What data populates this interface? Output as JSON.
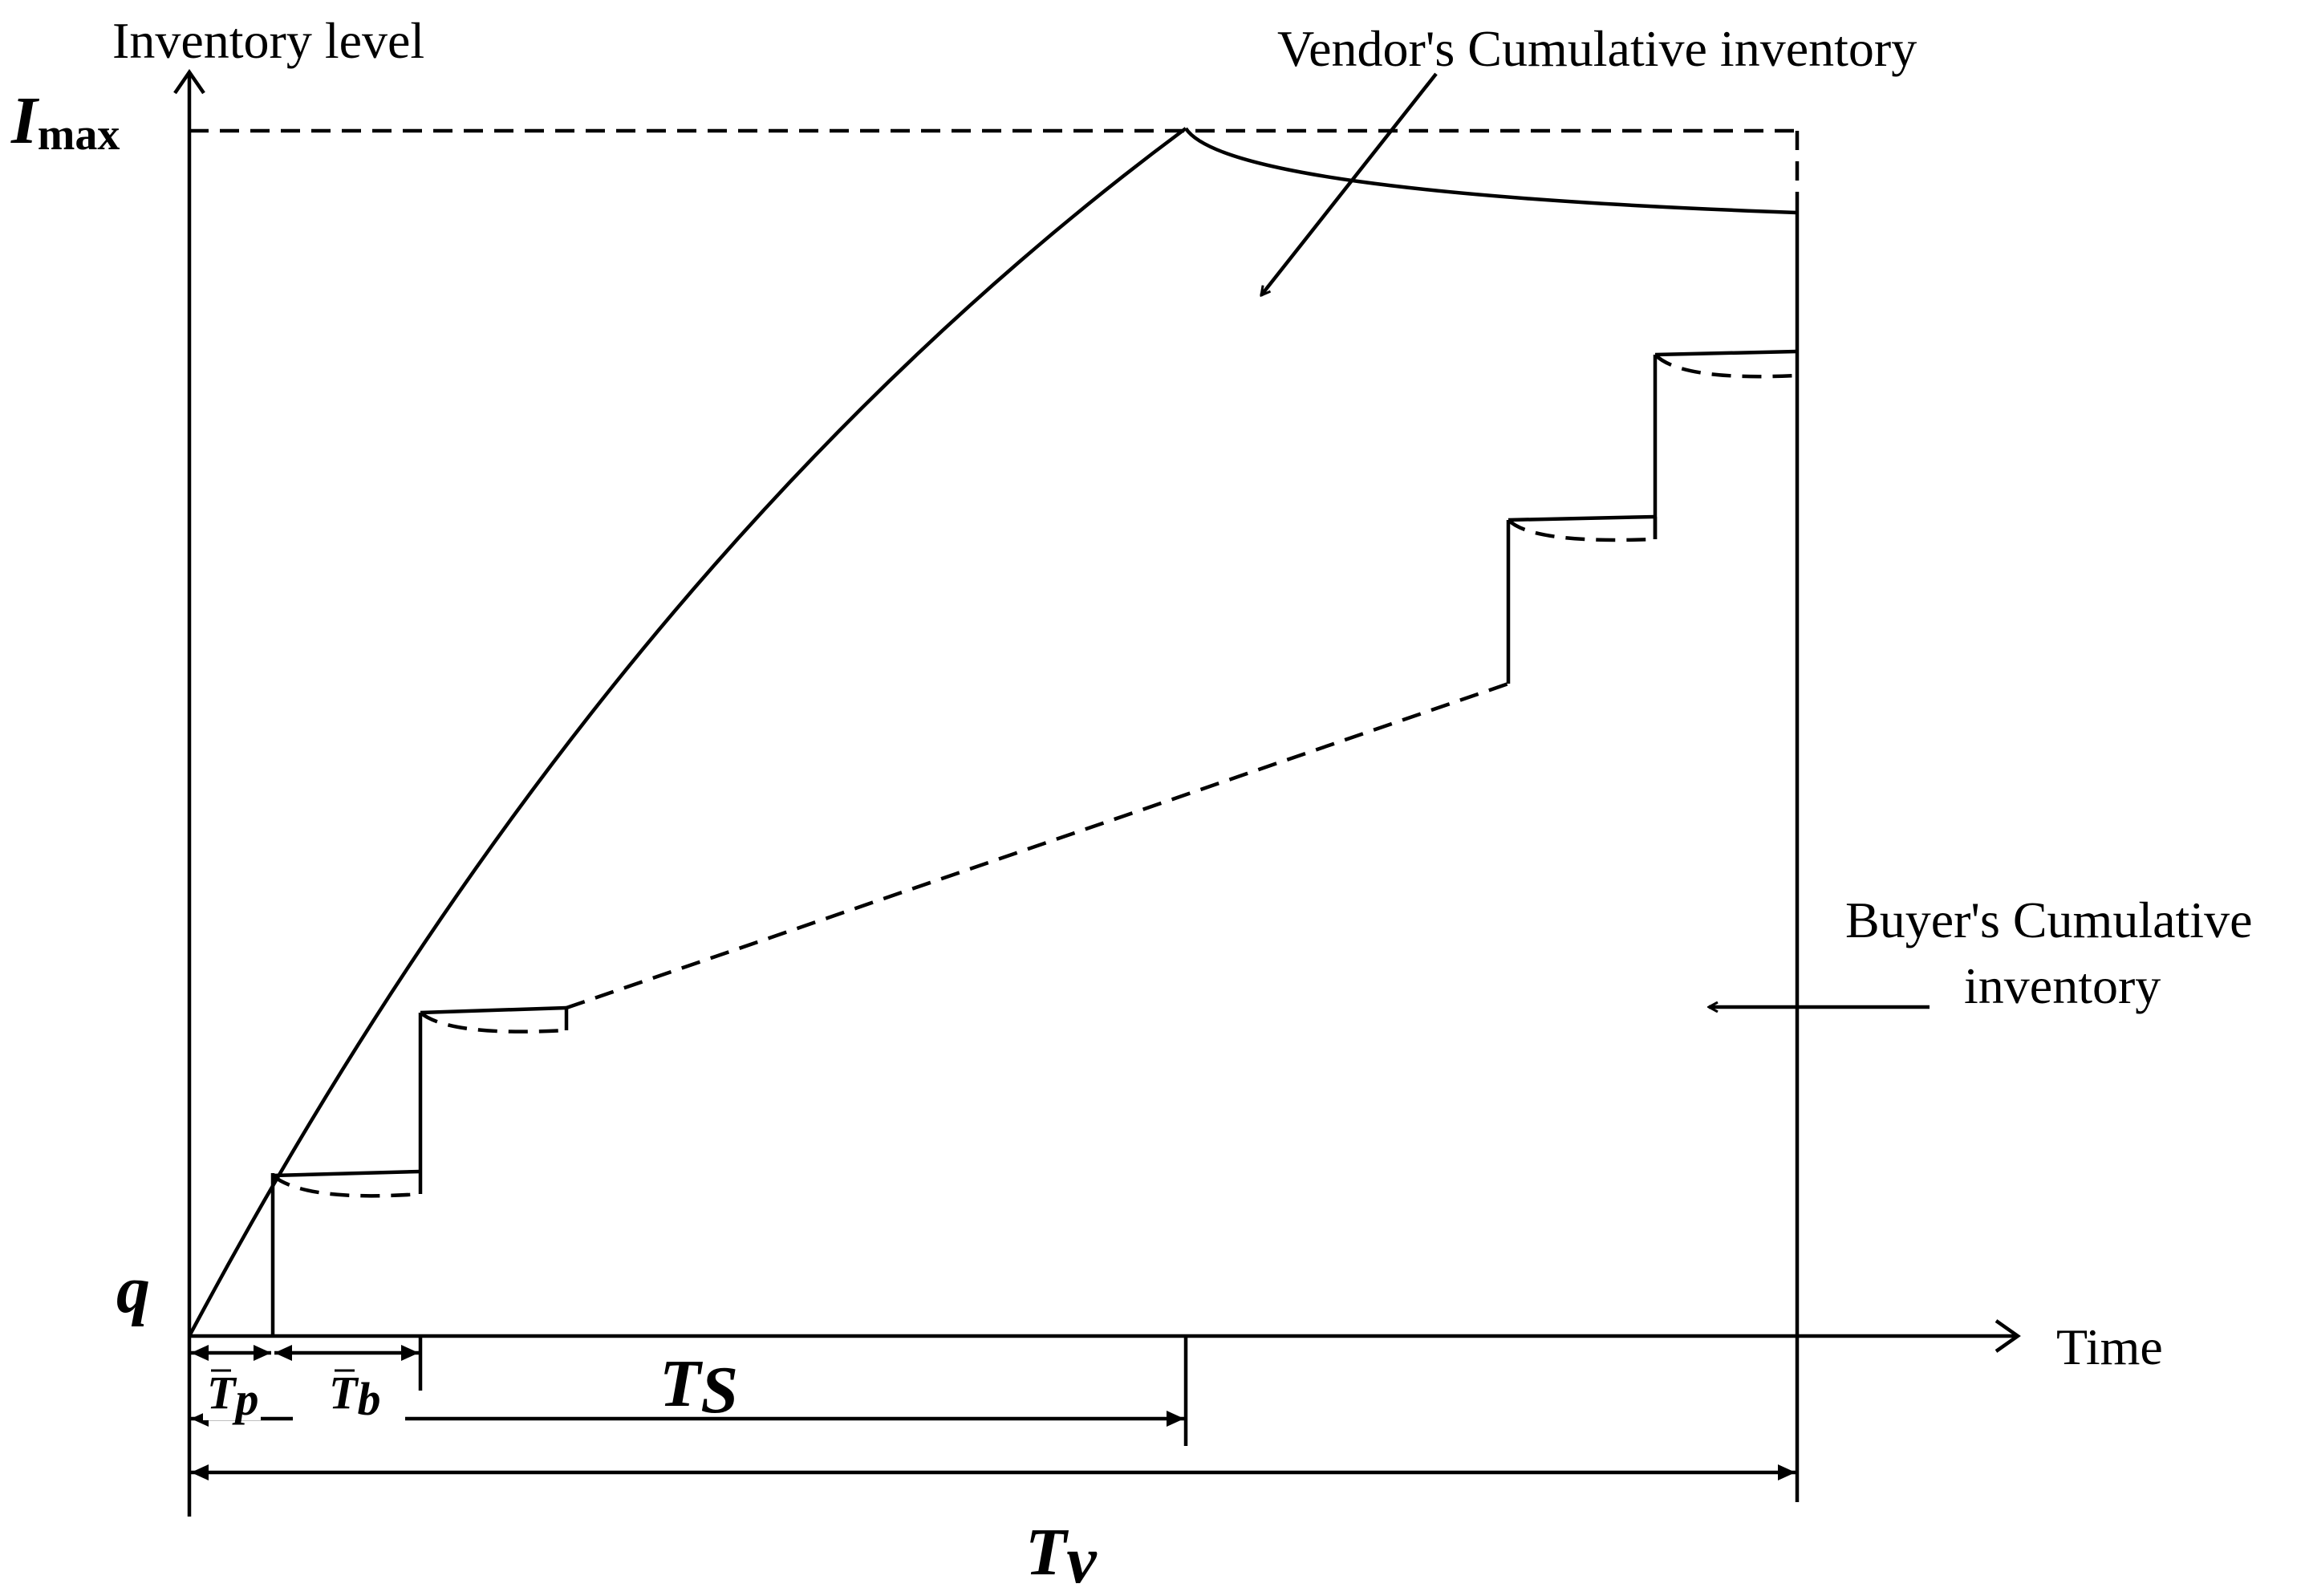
{
  "axes": {
    "y_label": "Inventory level",
    "x_label": "Time"
  },
  "levels": {
    "top_symbol": "I",
    "top_subscript": "max",
    "bottom_symbol": "q"
  },
  "annotations": {
    "vendor_label": "Vendor's  Cumulative inventory",
    "buyer_label_line1": "Buyer's Cumulative",
    "buyer_label_line2": "inventory"
  },
  "intervals": {
    "tp_symbol": "T",
    "tp_subscript": "p",
    "tb_symbol": "T",
    "tb_subscript": "b",
    "ts_symbol": "T",
    "ts_subscript": "S",
    "tv_symbol": "T",
    "tv_subscript": "v"
  }
}
